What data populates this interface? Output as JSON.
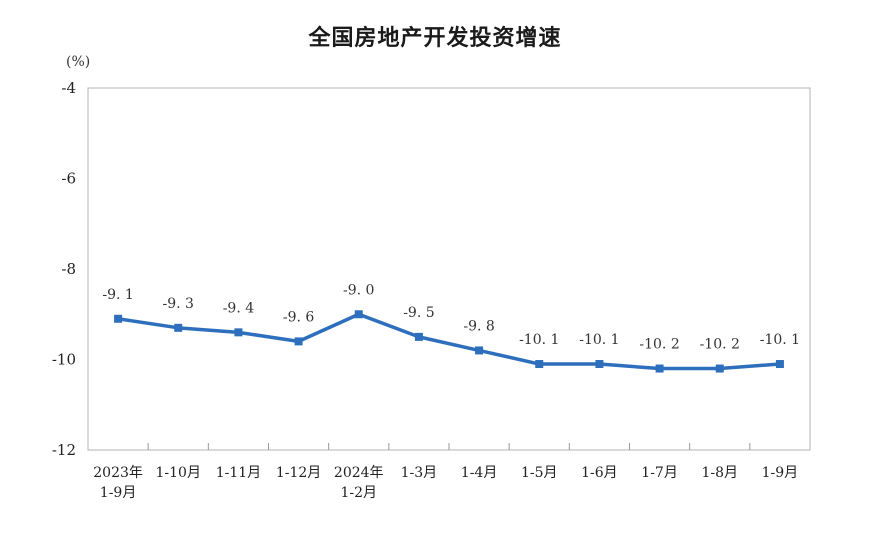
{
  "chart_data": {
    "type": "line",
    "title": "全国房地产开发投资增速",
    "ylabel": "(%)",
    "xlabel": "",
    "ylim": [
      -12,
      -4
    ],
    "yticks": [
      -4,
      -6,
      -8,
      -10,
      -12
    ],
    "grid": false,
    "categories": [
      [
        "2023年",
        "1-9月"
      ],
      [
        "1-10月"
      ],
      [
        "1-11月"
      ],
      [
        "1-12月"
      ],
      [
        "2024年",
        "1-2月"
      ],
      [
        "1-3月"
      ],
      [
        "1-4月"
      ],
      [
        "1-5月"
      ],
      [
        "1-6月"
      ],
      [
        "1-7月"
      ],
      [
        "1-8月"
      ],
      [
        "1-9月"
      ]
    ],
    "series": [
      {
        "values": [
          -9.1,
          -9.3,
          -9.4,
          -9.6,
          -9.0,
          -9.5,
          -9.8,
          -10.1,
          -10.1,
          -10.2,
          -10.2,
          -10.1
        ],
        "data_labels": [
          "-9. 1",
          "-9. 3",
          "-9. 4",
          "-9. 6",
          "-9. 0",
          "-9. 5",
          "-9. 8",
          "-10. 1",
          "-10. 1",
          "-10. 2",
          "-10. 2",
          "-10. 1"
        ],
        "color": "#2e6fbd"
      }
    ]
  }
}
